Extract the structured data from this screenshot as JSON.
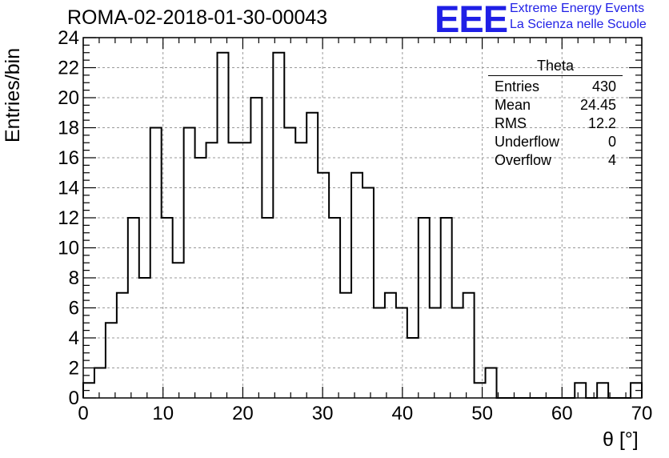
{
  "header": {
    "title": "ROMA-02-2018-01-30-00043",
    "logo_text": "EEE",
    "logo_line1": "Extreme Energy Events",
    "logo_line2": "La Scienza nelle Scuole"
  },
  "stats_box": {
    "title": "Theta",
    "rows": [
      {
        "label": "Entries",
        "value": "430"
      },
      {
        "label": "Mean",
        "value": "24.45"
      },
      {
        "label": "RMS",
        "value": "12.2"
      },
      {
        "label": "Underflow",
        "value": "0"
      },
      {
        "label": "Overflow",
        "value": "4"
      }
    ]
  },
  "chart_data": {
    "type": "bar",
    "subtype": "step-histogram",
    "title": "ROMA-02-2018-01-30-00043",
    "xlabel": "θ [°]",
    "ylabel": "Entries/bin",
    "xlim": [
      0,
      70
    ],
    "ylim": [
      0,
      24
    ],
    "bin_width": 1.4,
    "bin_edges_start": 0,
    "x_ticks": [
      0,
      10,
      20,
      30,
      40,
      50,
      60,
      70
    ],
    "y_ticks": [
      0,
      2,
      4,
      6,
      8,
      10,
      12,
      14,
      16,
      18,
      20,
      22,
      24
    ],
    "grid": true,
    "values": [
      1,
      2,
      5,
      7,
      12,
      8,
      18,
      12,
      9,
      18,
      16,
      17,
      23,
      17,
      17,
      20,
      12,
      23,
      18,
      17,
      19,
      15,
      12,
      7,
      15,
      14,
      6,
      7,
      6,
      4,
      12,
      6,
      12,
      6,
      7,
      1,
      2,
      0,
      0,
      0,
      0,
      0,
      0,
      0,
      1,
      0,
      1,
      0,
      0,
      1
    ]
  }
}
